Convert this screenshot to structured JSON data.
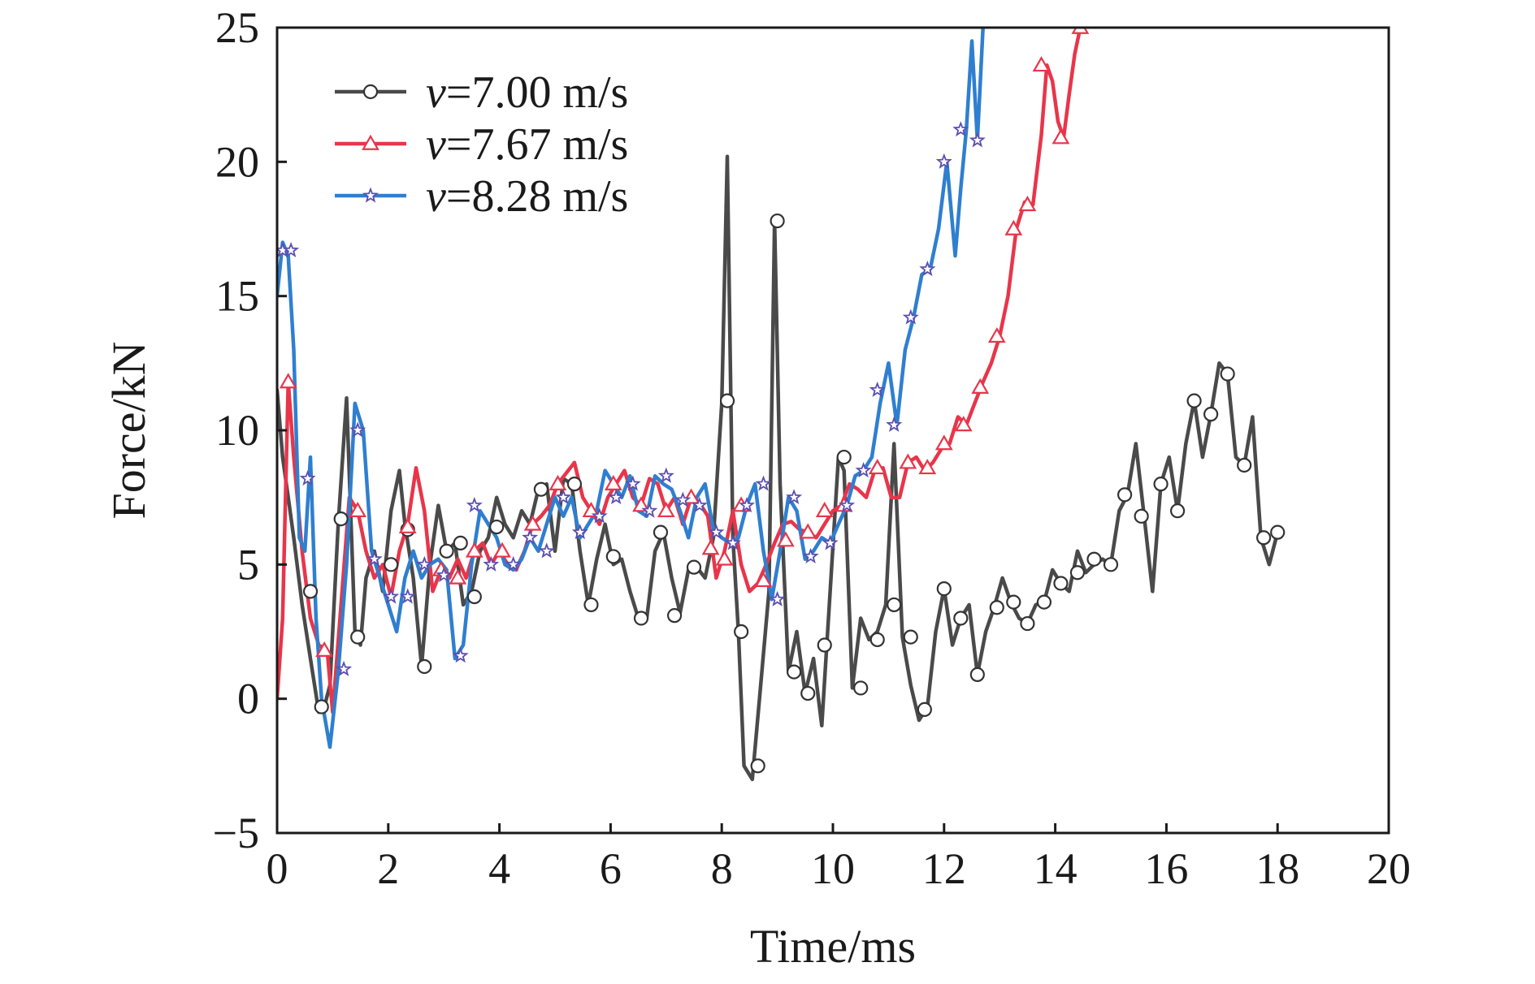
{
  "chart_data": {
    "type": "line",
    "xlabel": "Time/ms",
    "ylabel": "Force/kN",
    "xlim": [
      0,
      20
    ],
    "ylim": [
      -5,
      25
    ],
    "xticks": [
      0,
      2,
      4,
      6,
      8,
      10,
      12,
      14,
      16,
      18,
      20
    ],
    "yticks": [
      -5,
      0,
      5,
      10,
      15,
      20,
      25
    ],
    "xtick_labels": [
      "0",
      "2",
      "4",
      "6",
      "8",
      "10",
      "12",
      "14",
      "16",
      "18",
      "20"
    ],
    "ytick_labels": [
      "−5",
      "0",
      "5",
      "10",
      "15",
      "20",
      "25"
    ],
    "grid": false,
    "legend_position": "top-left",
    "series": [
      {
        "name": "v=7.00 m/s",
        "label_var": "v",
        "label_rest": "=7.00 m/s",
        "color": "#4a4a4a",
        "marker": "circle",
        "x": [
          0.0,
          0.1,
          0.2,
          0.3,
          0.45,
          0.6,
          0.75,
          0.85,
          0.95,
          1.1,
          1.25,
          1.4,
          1.5,
          1.6,
          1.75,
          1.9,
          2.05,
          2.2,
          2.3,
          2.45,
          2.6,
          2.75,
          2.9,
          3.05,
          3.2,
          3.35,
          3.5,
          3.65,
          3.8,
          3.95,
          4.1,
          4.25,
          4.4,
          4.55,
          4.7,
          4.85,
          5.0,
          5.15,
          5.3,
          5.45,
          5.6,
          5.75,
          5.9,
          6.05,
          6.2,
          6.35,
          6.5,
          6.65,
          6.8,
          6.95,
          7.1,
          7.25,
          7.4,
          7.55,
          7.7,
          7.85,
          8.0,
          8.1,
          8.2,
          8.3,
          8.4,
          8.55,
          8.7,
          8.85,
          8.95,
          9.05,
          9.2,
          9.35,
          9.5,
          9.65,
          9.8,
          9.95,
          10.1,
          10.2,
          10.35,
          10.5,
          10.65,
          10.8,
          10.95,
          11.1,
          11.25,
          11.4,
          11.55,
          11.7,
          11.85,
          12.0,
          12.15,
          12.3,
          12.45,
          12.6,
          12.75,
          12.9,
          13.05,
          13.2,
          13.35,
          13.5,
          13.65,
          13.8,
          13.95,
          14.1,
          14.25,
          14.4,
          14.55,
          14.7,
          14.85,
          15.0,
          15.15,
          15.3,
          15.45,
          15.6,
          15.75,
          15.9,
          16.05,
          16.2,
          16.35,
          16.5,
          16.65,
          16.8,
          16.95,
          17.1,
          17.25,
          17.4,
          17.55,
          17.7,
          17.85,
          18.0
        ],
        "y": [
          11.5,
          9.0,
          7.5,
          6.0,
          3.5,
          1.5,
          -0.5,
          -0.3,
          0.5,
          6.5,
          11.2,
          2.5,
          2.0,
          4.5,
          5.5,
          4.0,
          7.0,
          8.5,
          6.5,
          4.5,
          1.2,
          5.0,
          7.2,
          5.5,
          5.8,
          3.5,
          4.0,
          5.5,
          6.0,
          7.5,
          6.5,
          6.0,
          7.0,
          6.5,
          7.8,
          8.0,
          5.5,
          8.2,
          8.0,
          5.5,
          3.5,
          5.2,
          6.5,
          5.0,
          5.2,
          4.0,
          3.0,
          3.0,
          5.5,
          6.2,
          4.5,
          3.2,
          4.8,
          4.9,
          4.5,
          6.0,
          11.0,
          20.2,
          6.0,
          2.5,
          -2.5,
          -3.0,
          0.5,
          4.0,
          17.8,
          8.0,
          1.0,
          2.5,
          0.2,
          1.5,
          -1.0,
          4.0,
          9.0,
          8.5,
          0.4,
          3.0,
          2.2,
          2.5,
          3.5,
          9.5,
          2.3,
          0.5,
          -0.8,
          -0.3,
          2.5,
          4.1,
          2.0,
          3.0,
          3.5,
          0.9,
          2.5,
          3.4,
          4.5,
          3.6,
          3.0,
          2.8,
          3.5,
          3.6,
          4.8,
          4.3,
          4.0,
          5.5,
          4.7,
          5.0,
          5.2,
          5.0,
          7.0,
          7.6,
          9.5,
          6.8,
          4.0,
          8.0,
          9.0,
          7.0,
          9.5,
          11.1,
          9.0,
          10.6,
          12.5,
          12.1,
          9.0,
          8.7,
          10.5,
          6.0,
          5.0,
          6.2
        ],
        "marker_x": [
          0.6,
          0.8,
          1.15,
          1.45,
          2.05,
          2.35,
          2.65,
          3.05,
          3.3,
          3.55,
          3.95,
          4.75,
          5.35,
          5.65,
          6.05,
          6.55,
          6.9,
          7.15,
          7.5,
          8.1,
          8.35,
          8.65,
          9.0,
          9.3,
          9.55,
          9.85,
          10.2,
          10.5,
          10.8,
          11.1,
          11.4,
          11.65,
          12.0,
          12.3,
          12.6,
          12.95,
          13.25,
          13.5,
          13.8,
          14.1,
          14.4,
          14.7,
          15.0,
          15.25,
          15.55,
          15.9,
          16.2,
          16.5,
          16.8,
          17.1,
          17.4,
          17.75,
          18.0
        ],
        "marker_y": [
          4.0,
          -0.3,
          6.7,
          2.3,
          5.0,
          6.3,
          1.2,
          5.5,
          5.8,
          3.8,
          6.4,
          7.8,
          8.0,
          3.5,
          5.3,
          3.0,
          6.2,
          3.1,
          4.9,
          11.1,
          2.5,
          -2.5,
          17.8,
          1.0,
          0.2,
          2.0,
          9.0,
          0.4,
          2.2,
          3.5,
          2.3,
          -0.4,
          4.1,
          3.0,
          0.9,
          3.4,
          3.6,
          2.8,
          3.6,
          4.3,
          4.7,
          5.2,
          5.0,
          7.6,
          6.8,
          8.0,
          7.0,
          11.1,
          10.6,
          12.1,
          8.7,
          6.0,
          6.2
        ]
      },
      {
        "name": "v=7.67 m/s",
        "label_var": "v",
        "label_rest": "=7.67 m/s",
        "color": "#e8354a",
        "marker": "triangle",
        "x": [
          0.0,
          0.1,
          0.2,
          0.3,
          0.45,
          0.6,
          0.75,
          0.9,
          1.0,
          1.15,
          1.3,
          1.45,
          1.6,
          1.75,
          1.9,
          2.05,
          2.2,
          2.35,
          2.5,
          2.65,
          2.8,
          2.95,
          3.1,
          3.25,
          3.4,
          3.55,
          3.7,
          3.85,
          4.0,
          4.15,
          4.3,
          4.45,
          4.6,
          4.75,
          4.9,
          5.05,
          5.2,
          5.35,
          5.5,
          5.65,
          5.8,
          5.95,
          6.1,
          6.25,
          6.4,
          6.55,
          6.7,
          6.85,
          7.0,
          7.15,
          7.3,
          7.45,
          7.6,
          7.75,
          7.9,
          8.05,
          8.2,
          8.35,
          8.5,
          8.65,
          8.8,
          8.95,
          9.1,
          9.25,
          9.4,
          9.55,
          9.7,
          9.85,
          10.0,
          10.15,
          10.3,
          10.45,
          10.6,
          10.75,
          10.9,
          11.05,
          11.2,
          11.35,
          11.5,
          11.65,
          11.8,
          11.95,
          12.1,
          12.25,
          12.4,
          12.55,
          12.7,
          12.85,
          13.0,
          13.15,
          13.3,
          13.45,
          13.6,
          13.75,
          13.85,
          13.95,
          14.05,
          14.15,
          14.25,
          14.35,
          14.45
        ],
        "y": [
          0.0,
          3.0,
          11.8,
          9.0,
          5.5,
          3.0,
          2.0,
          1.8,
          -0.5,
          3.5,
          7.5,
          7.0,
          5.5,
          4.5,
          5.0,
          3.8,
          5.5,
          6.5,
          8.6,
          7.0,
          4.0,
          4.8,
          4.5,
          5.2,
          4.5,
          5.5,
          5.8,
          5.0,
          5.5,
          5.0,
          4.8,
          5.5,
          6.5,
          6.8,
          7.2,
          8.0,
          8.4,
          8.8,
          7.5,
          7.0,
          6.5,
          7.5,
          8.0,
          8.5,
          7.5,
          7.2,
          8.2,
          8.0,
          7.0,
          7.5,
          6.5,
          7.5,
          7.3,
          6.8,
          4.5,
          5.5,
          7.0,
          5.0,
          4.0,
          4.3,
          5.0,
          5.8,
          6.5,
          6.6,
          6.3,
          6.2,
          6.0,
          6.5,
          7.0,
          7.2,
          8.0,
          7.8,
          7.5,
          8.5,
          8.6,
          7.5,
          7.5,
          8.8,
          9.0,
          8.5,
          8.8,
          9.3,
          9.5,
          10.5,
          10.2,
          11.0,
          11.8,
          12.5,
          13.5,
          15.0,
          17.5,
          18.5,
          18.4,
          21.0,
          23.6,
          23.0,
          21.5,
          20.9,
          22.5,
          24.0,
          25.0
        ],
        "marker_x": [
          0.2,
          0.85,
          1.45,
          2.35,
          2.95,
          3.25,
          3.55,
          4.05,
          4.6,
          5.05,
          5.65,
          6.05,
          6.55,
          7.0,
          7.45,
          7.8,
          8.05,
          8.35,
          8.75,
          9.15,
          9.55,
          9.85,
          10.2,
          10.8,
          11.35,
          11.7,
          12.0,
          12.35,
          12.65,
          12.95,
          13.25,
          13.5,
          13.75,
          14.1,
          14.45
        ],
        "marker_y": [
          11.8,
          1.8,
          7.0,
          6.4,
          4.8,
          4.5,
          5.5,
          5.5,
          6.5,
          8.0,
          7.0,
          8.0,
          7.2,
          7.0,
          7.5,
          5.6,
          5.2,
          7.2,
          4.4,
          5.9,
          6.2,
          7.0,
          7.2,
          8.6,
          8.8,
          8.6,
          9.5,
          10.2,
          11.6,
          13.5,
          17.5,
          18.4,
          23.6,
          20.9,
          25.0
        ]
      },
      {
        "name": "v=8.28 m/s",
        "label_var": "v",
        "label_rest": "=8.28 m/s",
        "color": "#2f7fd0",
        "marker": "star",
        "x": [
          0.0,
          0.1,
          0.2,
          0.3,
          0.4,
          0.5,
          0.6,
          0.7,
          0.8,
          0.95,
          1.1,
          1.25,
          1.4,
          1.55,
          1.7,
          1.85,
          2.0,
          2.15,
          2.3,
          2.45,
          2.6,
          2.75,
          2.9,
          3.05,
          3.2,
          3.35,
          3.5,
          3.65,
          3.8,
          3.95,
          4.1,
          4.25,
          4.4,
          4.55,
          4.7,
          4.85,
          5.0,
          5.15,
          5.3,
          5.45,
          5.6,
          5.75,
          5.9,
          6.05,
          6.2,
          6.35,
          6.5,
          6.65,
          6.8,
          6.95,
          7.1,
          7.25,
          7.4,
          7.55,
          7.7,
          7.85,
          8.0,
          8.15,
          8.3,
          8.45,
          8.6,
          8.75,
          8.9,
          9.05,
          9.2,
          9.35,
          9.5,
          9.65,
          9.8,
          9.95,
          10.1,
          10.25,
          10.4,
          10.55,
          10.7,
          10.85,
          11.0,
          11.15,
          11.3,
          11.45,
          11.6,
          11.75,
          11.9,
          12.05,
          12.2,
          12.3,
          12.4,
          12.5,
          12.6,
          12.7
        ],
        "y": [
          15.0,
          17.0,
          16.5,
          13.0,
          6.0,
          5.5,
          9.0,
          3.0,
          0.0,
          -1.8,
          1.0,
          5.0,
          11.0,
          10.0,
          5.5,
          4.5,
          3.5,
          2.5,
          4.5,
          5.5,
          4.5,
          5.0,
          5.2,
          4.8,
          1.5,
          2.0,
          5.0,
          7.0,
          6.5,
          6.0,
          5.0,
          4.8,
          5.2,
          6.0,
          5.5,
          6.5,
          7.5,
          6.8,
          7.5,
          6.0,
          6.5,
          7.0,
          8.5,
          8.0,
          7.5,
          8.3,
          7.0,
          6.8,
          8.3,
          8.0,
          7.8,
          7.0,
          6.0,
          7.5,
          8.0,
          6.3,
          6.0,
          5.8,
          6.0,
          7.2,
          8.0,
          5.5,
          3.7,
          5.5,
          7.5,
          7.0,
          5.2,
          5.5,
          6.0,
          5.8,
          6.5,
          7.2,
          8.3,
          8.5,
          9.0,
          11.0,
          12.5,
          10.2,
          13.0,
          14.2,
          15.8,
          16.0,
          17.5,
          20.0,
          16.5,
          19.0,
          21.2,
          24.5,
          20.8,
          25.0
        ],
        "marker_x": [
          0.1,
          0.25,
          0.55,
          1.2,
          1.45,
          1.75,
          2.05,
          2.35,
          2.65,
          3.0,
          3.3,
          3.55,
          3.85,
          4.25,
          4.55,
          4.85,
          5.15,
          5.45,
          5.8,
          6.1,
          6.4,
          6.7,
          7.0,
          7.3,
          7.6,
          7.9,
          8.2,
          8.45,
          8.75,
          9.0,
          9.3,
          9.6,
          9.95,
          10.25,
          10.55,
          10.8,
          11.1,
          11.4,
          11.7,
          12.0,
          12.3,
          12.6
        ],
        "marker_y": [
          16.7,
          16.7,
          8.2,
          1.1,
          10.0,
          5.2,
          3.8,
          3.8,
          5.0,
          4.6,
          1.6,
          7.2,
          5.0,
          5.0,
          6.0,
          5.5,
          7.5,
          6.2,
          6.8,
          7.5,
          8.0,
          7.0,
          8.3,
          7.4,
          7.2,
          6.2,
          5.8,
          7.2,
          8.0,
          3.7,
          7.5,
          5.3,
          5.8,
          7.2,
          8.5,
          11.5,
          10.2,
          14.2,
          16.0,
          20.0,
          21.2,
          20.8
        ]
      }
    ]
  }
}
